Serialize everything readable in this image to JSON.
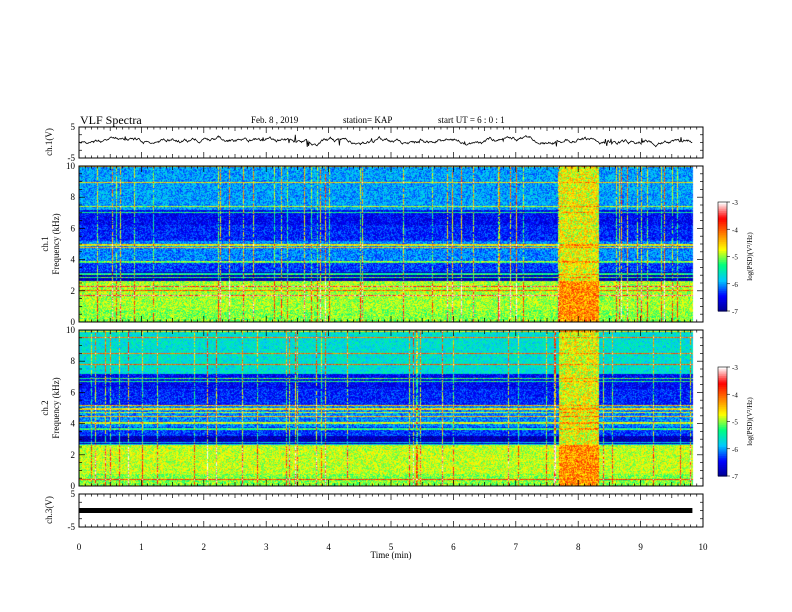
{
  "header": {
    "title": "VLF Spectra",
    "date": "Feb. 8 , 2019",
    "station": "station= KAP",
    "start": "start UT =  6 : 0  : 1"
  },
  "chart_data": [
    {
      "type": "line",
      "panel": "ch1-waveform",
      "ylabel": "ch.1(V)",
      "yticks": [
        "5",
        "-5"
      ],
      "ylim": [
        -5,
        5
      ],
      "xlim": [
        0,
        10
      ],
      "x_extent_min": 9.83,
      "series": [
        {
          "approx_level": 0.5,
          "peak_to_peak": 3
        }
      ]
    },
    {
      "type": "heatmap",
      "panel": "ch1-spectrogram",
      "ylabel_line1": "ch.1",
      "ylabel_line2": "Frequency (kHz)",
      "yticks": [
        "0",
        "2",
        "4",
        "6",
        "8",
        "10"
      ],
      "ylim": [
        0,
        10
      ],
      "xlim": [
        0,
        10
      ],
      "colorbar": {
        "label": "log(PSD)(V²/Hz)",
        "ticks": [
          "-3",
          "-4",
          "-5",
          "-6",
          "-7"
        ],
        "range": [
          -7,
          -3
        ],
        "colors": [
          "#00008f",
          "#0000ff",
          "#00c8ff",
          "#00ff7f",
          "#ffff00",
          "#ff7f00",
          "#ff0000",
          "#ffffff"
        ]
      },
      "noise_burst": {
        "t_start": 7.68,
        "t_end": 8.33
      }
    },
    {
      "type": "heatmap",
      "panel": "ch2-spectrogram",
      "ylabel_line1": "ch.2",
      "ylabel_line2": "Frequency (kHz)",
      "yticks": [
        "0",
        "2",
        "4",
        "6",
        "8",
        "10"
      ],
      "ylim": [
        0,
        10
      ],
      "xlim": [
        0,
        10
      ],
      "colorbar": {
        "label": "log(PSD)(V²/Hz)",
        "ticks": [
          "-3",
          "-4",
          "-5",
          "-6",
          "-7"
        ],
        "range": [
          -7,
          -3
        ]
      },
      "noise_burst": {
        "t_start": 7.68,
        "t_end": 8.33
      }
    },
    {
      "type": "line",
      "panel": "ch3-waveform",
      "ylabel": "ch.3(V)",
      "yticks": [
        "5",
        "-5"
      ],
      "ylim": [
        -5,
        5
      ],
      "xlim": [
        0,
        10
      ],
      "series": [
        {
          "approx_level": 0
        }
      ]
    }
  ],
  "xaxis": {
    "label": "Time (min)",
    "ticks": [
      "0",
      "1",
      "2",
      "3",
      "4",
      "5",
      "6",
      "7",
      "8",
      "9",
      "10"
    ]
  }
}
